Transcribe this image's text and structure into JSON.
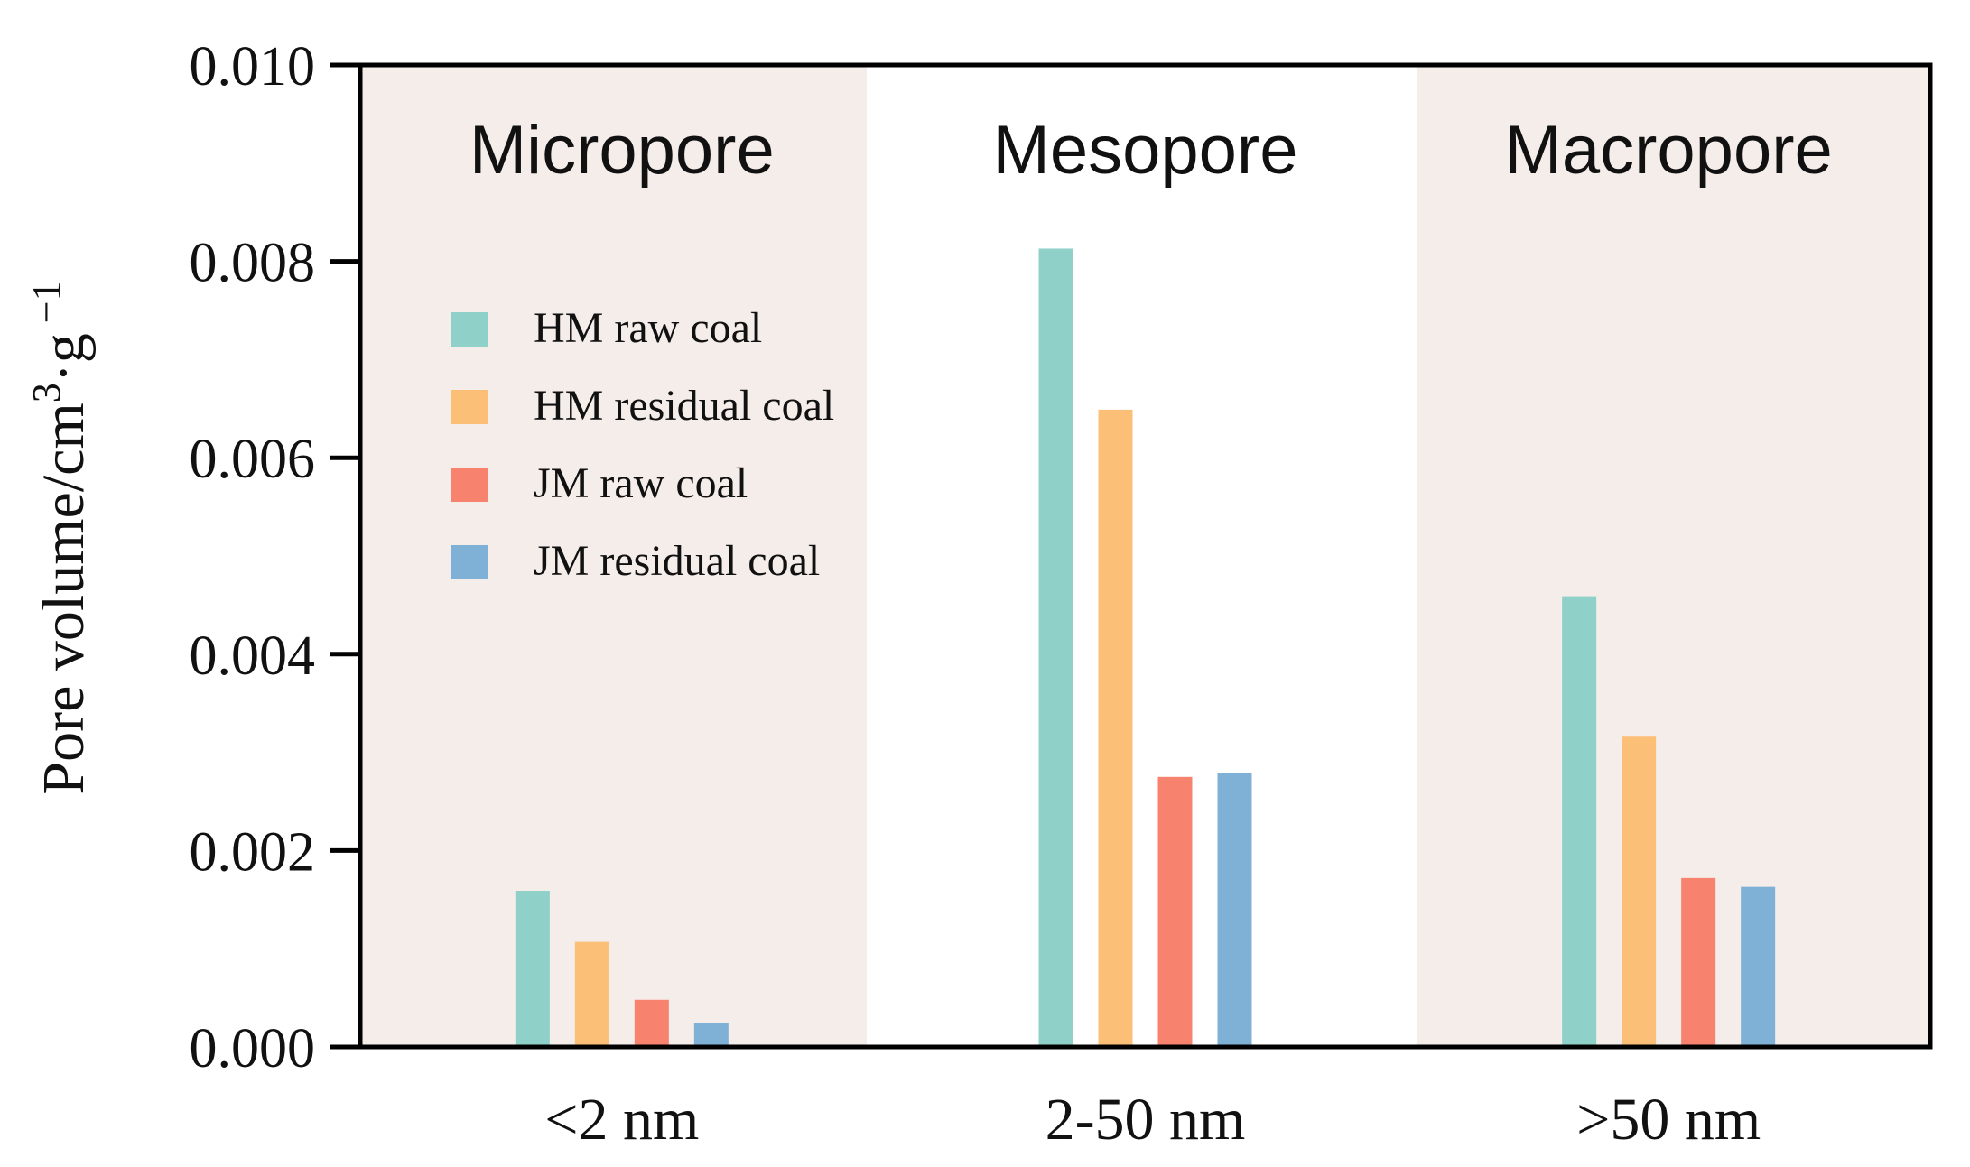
{
  "chart_data": {
    "type": "bar",
    "title": "",
    "xlabel": "",
    "ylabel": {
      "base": "Pore volume/cm",
      "sup1": "3",
      "mid": "·g",
      "sup2": " −1"
    },
    "categories": [
      "<2 nm",
      "2-50 nm",
      ">50 nm"
    ],
    "regions": [
      "Micropore",
      "Mesopore",
      "Macropore"
    ],
    "ylim": [
      0,
      0.01
    ],
    "yticks": [
      "0.000",
      "0.002",
      "0.004",
      "0.006",
      "0.008",
      "0.010"
    ],
    "legend_position": "upper-left",
    "grid": false,
    "series": [
      {
        "name": "HM raw coal",
        "color": "#8fd0c8",
        "values": [
          0.00159,
          0.00813,
          0.00459
        ]
      },
      {
        "name": "HM residual coal",
        "color": "#fbbf78",
        "values": [
          0.00107,
          0.00649,
          0.00316
        ]
      },
      {
        "name": "JM raw coal",
        "color": "#f7836f",
        "values": [
          0.00048,
          0.00275,
          0.00172
        ]
      },
      {
        "name": "JM residual coal",
        "color": "#7fb0d6",
        "values": [
          0.00024,
          0.00279,
          0.00163
        ]
      }
    ],
    "colors": {
      "shade": "#f5edea",
      "axis": "#000000"
    }
  }
}
